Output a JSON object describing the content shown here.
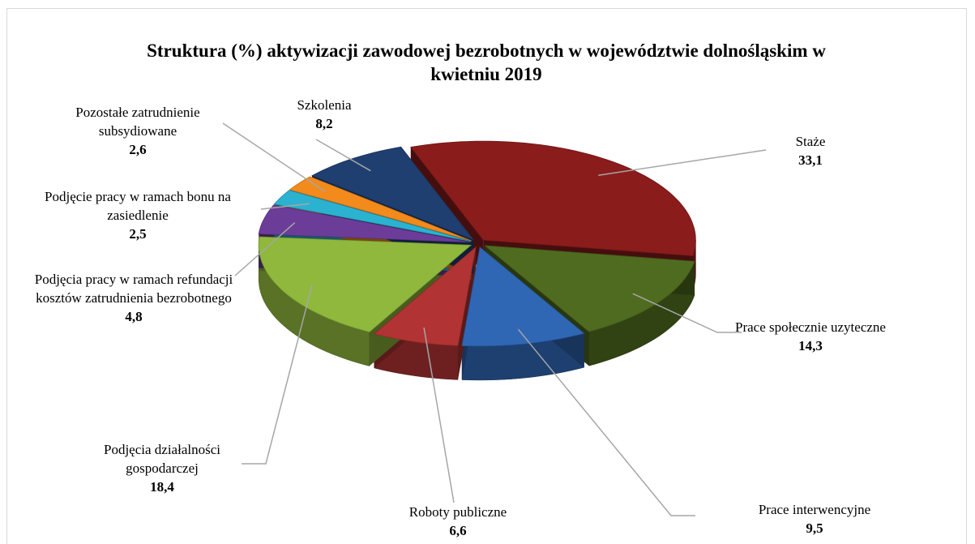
{
  "chart_data": {
    "type": "pie",
    "title": "Struktura (%) aktywizacji zawodowej bezrobotnych w województwie dolnośląskim w kwietniu 2019",
    "categories": [
      "Staże",
      "Prace społecznie uzyteczne",
      "Prace interwencyjne",
      "Roboty publiczne",
      "Podjęcia działalności gospodarczej",
      "Podjęcia pracy w ramach refundacji kosztów zatrudnienia bezrobotnego",
      "Podjęcie pracy w ramach bonu na zasiedlenie",
      "Pozostałe zatrudnienie subsydiowane",
      "Szkolenia"
    ],
    "values": [
      33.1,
      14.3,
      9.5,
      6.6,
      18.4,
      4.8,
      2.5,
      2.6,
      8.2
    ],
    "value_labels": [
      "33,1",
      "14,3",
      "9,5",
      "6,6",
      "18,4",
      "4,8",
      "2,5",
      "2,6",
      "8,2"
    ],
    "colors": [
      "#8a1c1c",
      "#4f6b1f",
      "#2f67b5",
      "#b23333",
      "#8fb83c",
      "#6b3d99",
      "#2bb2d0",
      "#f28a1c",
      "#1f3f70"
    ]
  }
}
